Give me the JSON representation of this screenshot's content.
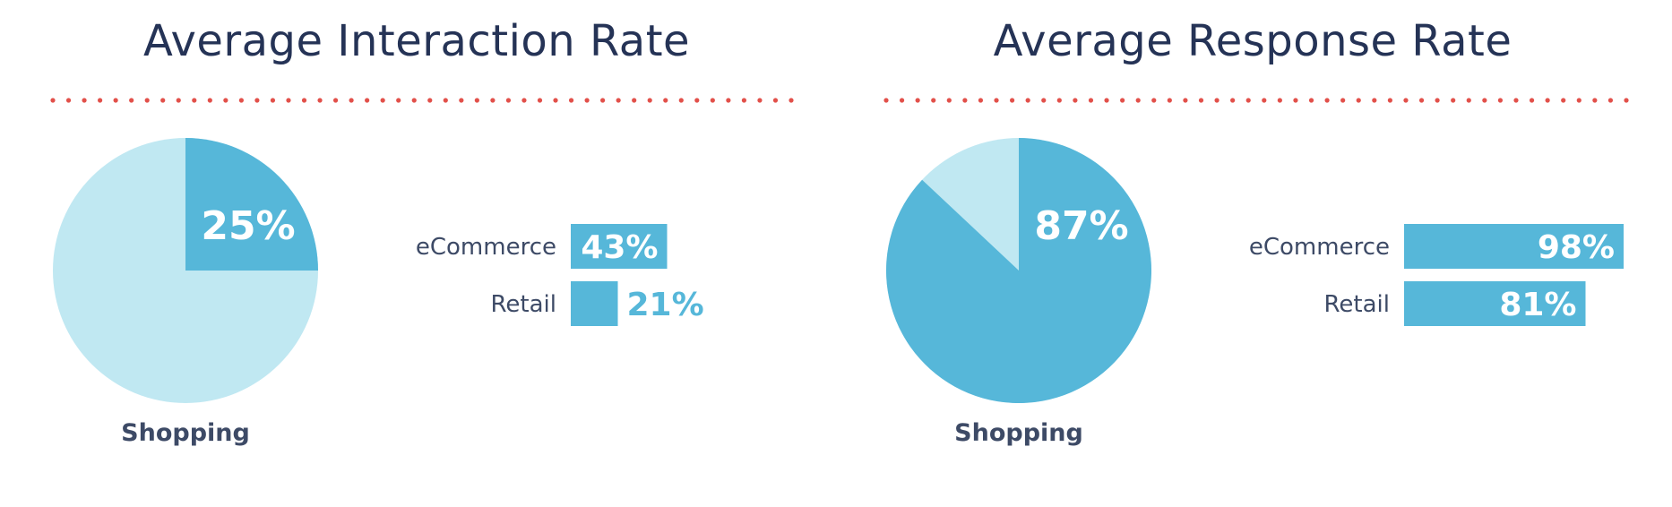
{
  "colors": {
    "title": "#253356",
    "accent_dots": "#e2504a",
    "pie_main": "#56b7d9",
    "pie_rest": "#c0e8f2",
    "bar": "#56b7d9",
    "label": "#3d4a66",
    "value_inside": "#ffffff",
    "value_outside": "#56b7d9"
  },
  "chart_data": [
    {
      "type": "pie",
      "title": "Average Interaction Rate",
      "label": "Shopping",
      "value": 25,
      "value_label": "25%"
    },
    {
      "type": "bar",
      "orientation": "horizontal",
      "categories": [
        "eCommerce",
        "Retail"
      ],
      "values": [
        43,
        21
      ],
      "value_labels": [
        "43%",
        "21%"
      ],
      "xlim": [
        0,
        100
      ]
    },
    {
      "type": "pie",
      "title": "Average Response Rate",
      "label": "Shopping",
      "value": 87,
      "value_label": "87%"
    },
    {
      "type": "bar",
      "orientation": "horizontal",
      "categories": [
        "eCommerce",
        "Retail"
      ],
      "values": [
        98,
        81
      ],
      "value_labels": [
        "98%",
        "81%"
      ],
      "xlim": [
        0,
        100
      ]
    }
  ]
}
